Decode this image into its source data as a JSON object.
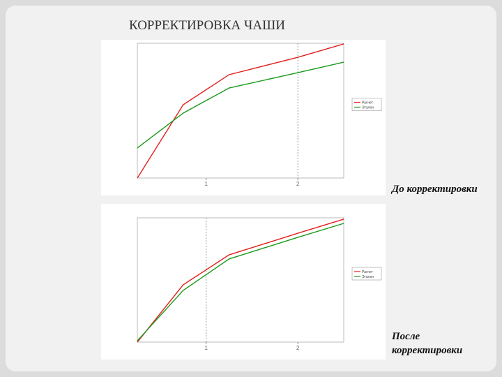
{
  "title": "КОРРЕКТИРОВКА ЧАШИ",
  "captions": [
    "До корректировки",
    "После корректировки"
  ],
  "chart_data": [
    {
      "type": "line",
      "x": [
        0.25,
        0.75,
        1.25,
        2,
        2.5
      ],
      "xlim": [
        0.25,
        2.5
      ],
      "xticks": [
        1,
        2
      ],
      "ylim": [
        0,
        100
      ],
      "grid_x": [
        2
      ],
      "series": [
        {
          "name": "Расчет",
          "color": "#e0201c",
          "values": [
            0,
            54.4,
            76.7,
            89.6,
            99.5
          ]
        },
        {
          "name": "Эталон",
          "color": "#1a9a1a",
          "values": [
            22.3,
            48.2,
            66.8,
            78.2,
            86.0
          ]
        }
      ]
    },
    {
      "type": "line",
      "x": [
        0.25,
        0.75,
        1.25,
        2,
        2.5
      ],
      "xlim": [
        0.25,
        2.5
      ],
      "xticks": [
        1,
        2
      ],
      "ylim": [
        0,
        100
      ],
      "grid_x": [
        1
      ],
      "series": [
        {
          "name": "Расчет",
          "color": "#e0201c",
          "values": [
            0,
            46.1,
            70.2,
            87.6,
            98.9
          ]
        },
        {
          "name": "Эталон",
          "color": "#1a9a1a",
          "values": [
            1.1,
            41.6,
            66.9,
            84.3,
            95.5
          ]
        }
      ]
    }
  ]
}
